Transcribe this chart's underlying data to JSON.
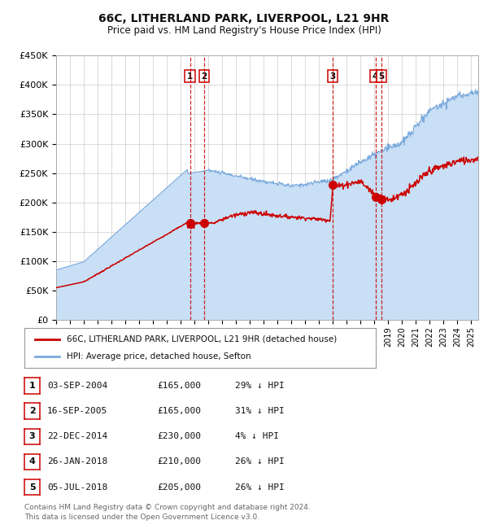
{
  "title1": "66C, LITHERLAND PARK, LIVERPOOL, L21 9HR",
  "title2": "Price paid vs. HM Land Registry's House Price Index (HPI)",
  "legend_line1": "66C, LITHERLAND PARK, LIVERPOOL, L21 9HR (detached house)",
  "legend_line2": "HPI: Average price, detached house, Sefton",
  "ylim": [
    0,
    450000
  ],
  "yticks": [
    0,
    50000,
    100000,
    150000,
    200000,
    250000,
    300000,
    350000,
    400000,
    450000
  ],
  "ytick_labels": [
    "£0",
    "£50K",
    "£100K",
    "£150K",
    "£200K",
    "£250K",
    "£300K",
    "£350K",
    "£400K",
    "£450K"
  ],
  "hpi_color": "#7aaadd",
  "hpi_fill_color": "#c8dff5",
  "price_color": "#cc0000",
  "vline_color": "#cc0000",
  "marker_color": "#cc0000",
  "sale_points": [
    {
      "label": "1",
      "date_x": 2004.67,
      "price": 165000
    },
    {
      "label": "2",
      "date_x": 2005.71,
      "price": 165000
    },
    {
      "label": "3",
      "date_x": 2014.98,
      "price": 230000
    },
    {
      "label": "4",
      "date_x": 2018.07,
      "price": 210000
    },
    {
      "label": "5",
      "date_x": 2018.51,
      "price": 205000
    }
  ],
  "table_rows": [
    {
      "num": "1",
      "date": "03-SEP-2004",
      "price": "£165,000",
      "pct": "29% ↓ HPI"
    },
    {
      "num": "2",
      "date": "16-SEP-2005",
      "price": "£165,000",
      "pct": "31% ↓ HPI"
    },
    {
      "num": "3",
      "date": "22-DEC-2014",
      "price": "£230,000",
      "pct": "4% ↓ HPI"
    },
    {
      "num": "4",
      "date": "26-JAN-2018",
      "price": "£210,000",
      "pct": "26% ↓ HPI"
    },
    {
      "num": "5",
      "date": "05-JUL-2018",
      "price": "£205,000",
      "pct": "26% ↓ HPI"
    }
  ],
  "footnote": "Contains HM Land Registry data © Crown copyright and database right 2024.\nThis data is licensed under the Open Government Licence v3.0.",
  "xmin": 1995,
  "xmax": 2025.5,
  "background_color": "#ffffff",
  "plot_bg_color": "#ffffff",
  "grid_color": "#cccccc"
}
